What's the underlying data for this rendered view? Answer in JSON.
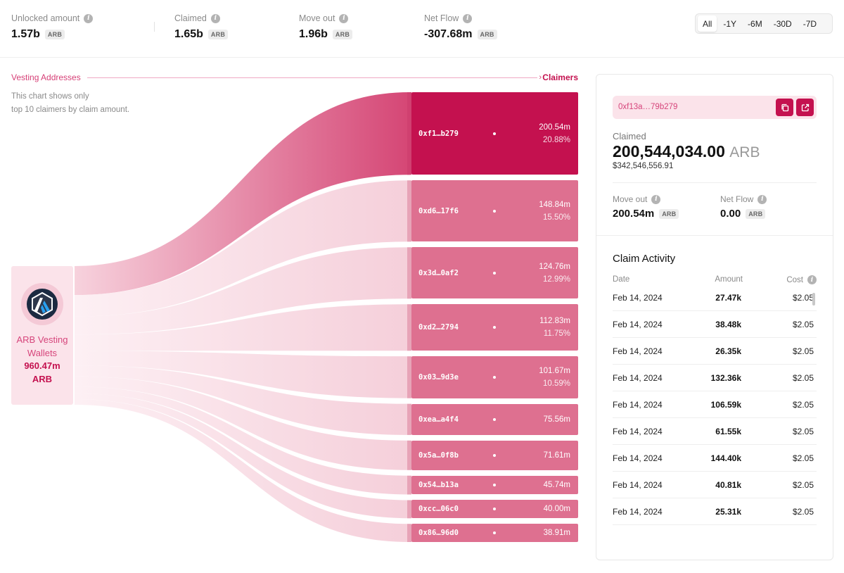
{
  "stats": [
    {
      "label": "Unlocked amount",
      "value": "1.57b",
      "unit": "ARB"
    },
    {
      "label": "Claimed",
      "value": "1.65b",
      "unit": "ARB"
    },
    {
      "label": "Move out",
      "value": "1.96b",
      "unit": "ARB"
    },
    {
      "label": "Net Flow",
      "value": "-307.68m",
      "unit": "ARB"
    }
  ],
  "time_range": {
    "options": [
      "All",
      "-1Y",
      "-6M",
      "-30D",
      "-7D"
    ],
    "selected": "All"
  },
  "flow": {
    "from_label": "Vesting Addresses",
    "to_label": "Claimers",
    "note_line1": "This chart shows only",
    "note_line2": "top 10 claimers by claim amount.",
    "source": {
      "name": "ARB Vesting Wallets",
      "amount": "960.47m",
      "unit": "ARB"
    },
    "claimers": [
      {
        "address": "0xf1…b279",
        "amount": "200.54m",
        "percent": "20.88%",
        "value": 200.54,
        "selected": true
      },
      {
        "address": "0xd6…17f6",
        "amount": "148.84m",
        "percent": "15.50%",
        "value": 148.84
      },
      {
        "address": "0x3d…0af2",
        "amount": "124.76m",
        "percent": "12.99%",
        "value": 124.76
      },
      {
        "address": "0xd2…2794",
        "amount": "112.83m",
        "percent": "11.75%",
        "value": 112.83
      },
      {
        "address": "0x03…9d3e",
        "amount": "101.67m",
        "percent": "10.59%",
        "value": 101.67
      },
      {
        "address": "0xea…a4f4",
        "amount": "75.56m",
        "percent": "",
        "value": 75.56
      },
      {
        "address": "0x5a…0f8b",
        "amount": "71.61m",
        "percent": "",
        "value": 71.61
      },
      {
        "address": "0x54…b13a",
        "amount": "45.74m",
        "percent": "",
        "value": 45.74
      },
      {
        "address": "0xcc…06c0",
        "amount": "40.00m",
        "percent": "",
        "value": 40.0
      },
      {
        "address": "0x86…96d0",
        "amount": "38.91m",
        "percent": "",
        "value": 38.91
      }
    ]
  },
  "detail": {
    "address": "0xf13a…79b279",
    "claimed_label": "Claimed",
    "claimed_value": "200,544,034.00",
    "claimed_unit": "ARB",
    "claimed_usd": "$342,546,556.91",
    "move_out_label": "Move out",
    "move_out_value": "200.54m",
    "net_flow_label": "Net Flow",
    "net_flow_value": "0.00",
    "unit": "ARB",
    "activity_title": "Claim Activity",
    "columns": {
      "date": "Date",
      "amount": "Amount",
      "cost": "Cost"
    },
    "rows": [
      {
        "date": "Feb 14, 2024",
        "amount": "27.47k",
        "cost": "$2.05"
      },
      {
        "date": "Feb 14, 2024",
        "amount": "38.48k",
        "cost": "$2.05"
      },
      {
        "date": "Feb 14, 2024",
        "amount": "26.35k",
        "cost": "$2.05"
      },
      {
        "date": "Feb 14, 2024",
        "amount": "132.36k",
        "cost": "$2.05"
      },
      {
        "date": "Feb 14, 2024",
        "amount": "106.59k",
        "cost": "$2.05"
      },
      {
        "date": "Feb 14, 2024",
        "amount": "61.55k",
        "cost": "$2.05"
      },
      {
        "date": "Feb 14, 2024",
        "amount": "144.40k",
        "cost": "$2.05"
      },
      {
        "date": "Feb 14, 2024",
        "amount": "40.81k",
        "cost": "$2.05"
      },
      {
        "date": "Feb 14, 2024",
        "amount": "25.31k",
        "cost": "$2.05"
      }
    ]
  },
  "colors": {
    "accent": "#c4114f",
    "node": "#de7090",
    "source_bg": "#fbe3ea"
  }
}
